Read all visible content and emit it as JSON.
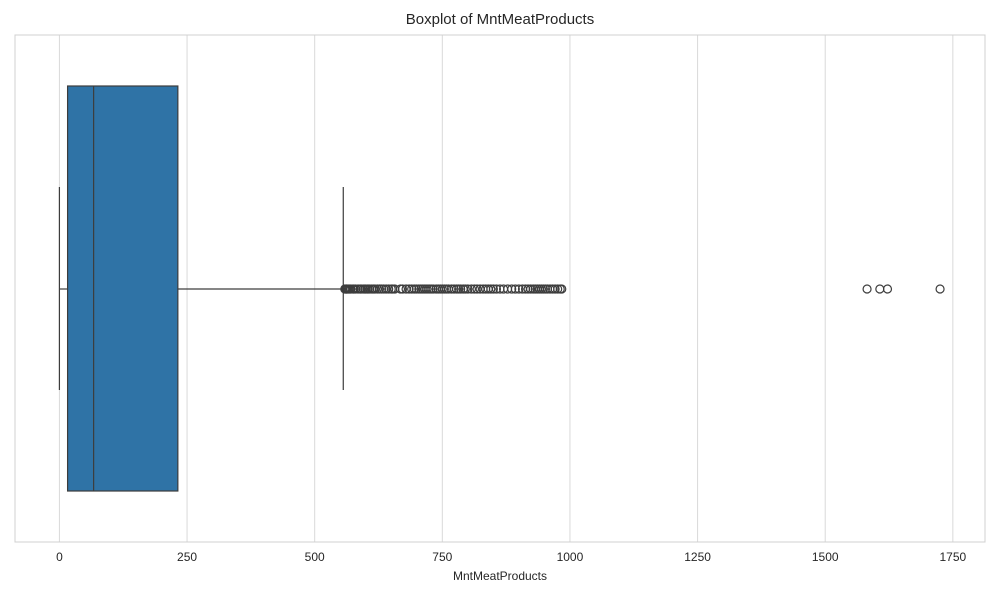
{
  "chart_data": {
    "type": "boxplot",
    "orientation": "horizontal",
    "title": "Boxplot of MntMeatProducts",
    "xlabel": "MntMeatProducts",
    "ylabel": "",
    "xlim": [
      -87,
      1813
    ],
    "xticks": [
      0,
      250,
      500,
      750,
      1000,
      1250,
      1500,
      1750
    ],
    "grid": true,
    "box": {
      "color": "#2f73a6",
      "whisker_low": 0,
      "q1": 16,
      "median": 67,
      "q3": 232,
      "whisker_high": 556
    },
    "outliers": [
      559,
      561,
      562,
      563,
      565,
      567,
      569,
      571,
      575,
      577,
      580,
      585,
      589,
      591,
      595,
      598,
      600,
      603,
      605,
      608,
      612,
      615,
      618,
      623,
      627,
      631,
      635,
      640,
      645,
      650,
      653,
      657,
      668,
      672,
      679,
      685,
      690,
      695,
      699,
      704,
      708,
      712,
      716,
      720,
      724,
      728,
      732,
      738,
      742,
      746,
      750,
      754,
      758,
      762,
      768,
      773,
      778,
      782,
      786,
      791,
      795,
      800,
      807,
      813,
      818,
      824,
      830,
      835,
      840,
      845,
      850,
      856,
      863,
      870,
      878,
      886,
      893,
      900,
      907,
      913,
      918,
      923,
      928,
      932,
      936,
      940,
      944,
      948,
      952,
      956,
      961,
      966,
      971,
      976,
      981,
      984,
      1582,
      1607,
      1622,
      1725
    ]
  }
}
